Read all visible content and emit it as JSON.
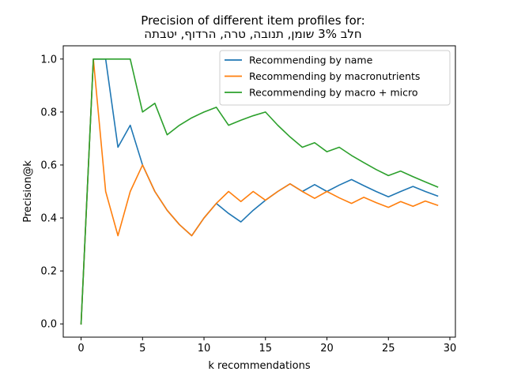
{
  "chart_data": {
    "type": "line",
    "title": "Precision of different item profiles for:",
    "subtitle": "חלב 3% שומן, תנובה, טרה, הרדוף, יטבתה",
    "xlabel": "k recommendations",
    "ylabel": "Precision@k",
    "xlim": [
      -1.45,
      30.45
    ],
    "ylim": [
      -0.05,
      1.05
    ],
    "xticks": [
      0,
      5,
      10,
      15,
      20,
      25,
      30
    ],
    "yticks": [
      0.0,
      0.2,
      0.4,
      0.6,
      0.8,
      1.0
    ],
    "xtick_labels": [
      "0",
      "5",
      "10",
      "15",
      "20",
      "25",
      "30"
    ],
    "ytick_labels": [
      "0.0",
      "0.2",
      "0.4",
      "0.6",
      "0.8",
      "1.0"
    ],
    "grid": false,
    "legend_position": "top-right",
    "x": [
      0,
      1,
      2,
      3,
      4,
      5,
      6,
      7,
      8,
      9,
      10,
      11,
      12,
      13,
      14,
      15,
      16,
      17,
      18,
      19,
      20,
      21,
      22,
      23,
      24,
      25,
      26,
      27,
      28,
      29
    ],
    "series": [
      {
        "name": "Recommending by name",
        "color": "#1f77b4",
        "values": [
          0.0,
          1.0,
          1.0,
          0.667,
          0.75,
          0.6,
          0.5,
          0.429,
          0.375,
          0.333,
          0.4,
          0.455,
          0.417,
          0.385,
          0.429,
          0.467,
          0.5,
          0.529,
          0.5,
          0.526,
          0.5,
          0.524,
          0.545,
          0.522,
          0.5,
          0.48,
          0.5,
          0.519,
          0.5,
          0.483
        ]
      },
      {
        "name": "Recommending by macronutrients",
        "color": "#ff7f0e",
        "values": [
          0.0,
          1.0,
          0.5,
          0.333,
          0.5,
          0.6,
          0.5,
          0.429,
          0.375,
          0.333,
          0.4,
          0.455,
          0.5,
          0.462,
          0.5,
          0.467,
          0.5,
          0.529,
          0.5,
          0.474,
          0.5,
          0.476,
          0.455,
          0.478,
          0.458,
          0.44,
          0.462,
          0.444,
          0.464,
          0.448
        ]
      },
      {
        "name": "Recommending by macro + micro",
        "color": "#2ca02c",
        "values": [
          0.0,
          1.0,
          1.0,
          1.0,
          1.0,
          0.8,
          0.833,
          0.714,
          0.75,
          0.778,
          0.8,
          0.818,
          0.75,
          0.769,
          0.786,
          0.8,
          0.75,
          0.706,
          0.667,
          0.684,
          0.65,
          0.667,
          0.636,
          0.609,
          0.583,
          0.56,
          0.577,
          0.556,
          0.536,
          0.517
        ]
      }
    ]
  }
}
